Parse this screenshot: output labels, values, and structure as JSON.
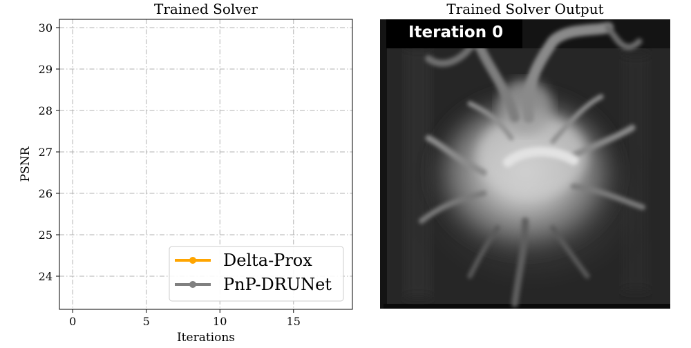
{
  "chart_data": [
    {
      "type": "line",
      "title": "Trained Solver",
      "xlabel": "Iterations",
      "ylabel": "PSNR",
      "xlim": [
        -0.9,
        19.0
      ],
      "ylim": [
        23.2,
        30.2
      ],
      "x_ticks": [
        0,
        5,
        10,
        15
      ],
      "y_ticks": [
        24,
        25,
        26,
        27,
        28,
        29,
        30
      ],
      "grid": true,
      "legend_position": "bottom-right",
      "series": [
        {
          "name": "Delta-Prox",
          "color": "#ffa500",
          "x": [],
          "y": []
        },
        {
          "name": "PnP-DRUNet",
          "color": "#808080",
          "x": [],
          "y": []
        }
      ]
    }
  ],
  "output_panel": {
    "title": "Trained Solver Output",
    "banner": "Iteration 0"
  }
}
